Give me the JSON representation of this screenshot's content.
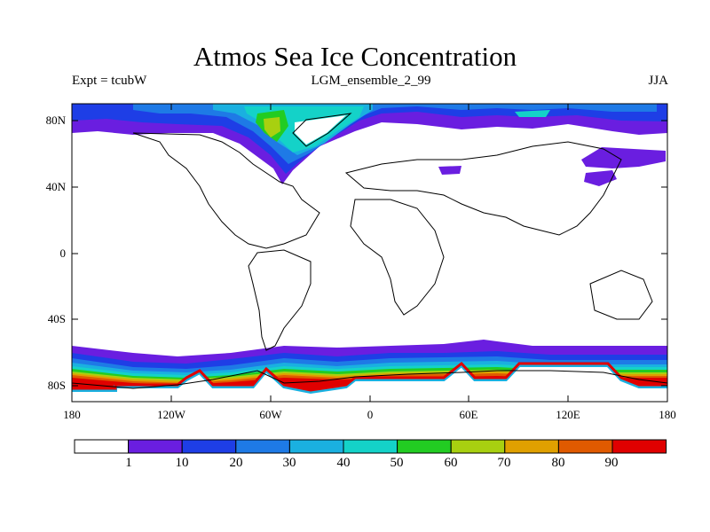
{
  "header": {
    "title": "Atmos Sea Ice Concentration",
    "expt": "Expt = tcubW",
    "run": "LGM_ensemble_2_99",
    "season": "JJA"
  },
  "axes": {
    "y_ticks": [
      "80N",
      "40N",
      "0",
      "40S",
      "80S"
    ],
    "x_ticks": [
      "180",
      "120W",
      "60W",
      "0",
      "60E",
      "120E",
      "180"
    ]
  },
  "colorbar": {
    "labels": [
      "1",
      "10",
      "20",
      "30",
      "40",
      "50",
      "60",
      "70",
      "80",
      "90"
    ],
    "colors": [
      "#ffffff",
      "#6a1ee0",
      "#1e3ee6",
      "#1e7ae6",
      "#1ab0e0",
      "#14d2c8",
      "#22cc22",
      "#a8d010",
      "#e0a000",
      "#e05a00",
      "#e00000"
    ]
  },
  "chart_data": {
    "type": "heatmap",
    "title": "Atmos Sea Ice Concentration",
    "subtitle": "LGM_ensemble_2_99",
    "xlabel": "",
    "ylabel": "",
    "x_range": [
      -180,
      180
    ],
    "y_range": [
      -90,
      90
    ],
    "x_ticks": [
      "180",
      "120W",
      "60W",
      "0",
      "60E",
      "120E",
      "180"
    ],
    "y_ticks": [
      "80N",
      "40N",
      "0",
      "40S",
      "80S"
    ],
    "contour_levels": [
      1,
      10,
      20,
      30,
      40,
      50,
      60,
      70,
      80,
      90
    ],
    "legend_position": "bottom"
  }
}
